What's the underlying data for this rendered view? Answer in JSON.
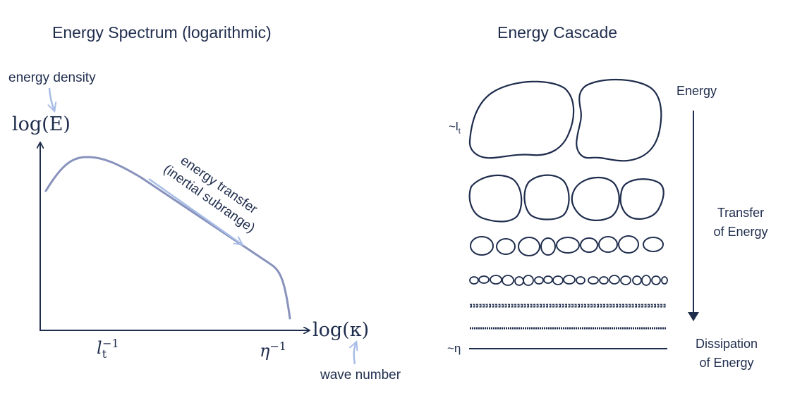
{
  "spectrum": {
    "title": "Energy Spectrum (logarithmic)",
    "energy_density_label": "energy density",
    "y_axis_label": "log(E)",
    "x_axis_label": "log(κ)",
    "wave_number_label": "wave number",
    "transfer_label_line1": "energy transfer",
    "transfer_label_line2": "(inertial subrange)",
    "tick_left": "l",
    "tick_left_sub": "t",
    "tick_left_sup": "−1",
    "tick_right": "η",
    "tick_right_sup": "−1",
    "colors": {
      "curve": "#8892bc",
      "arrow": "#a8bde6",
      "axis": "#1f2d4d"
    }
  },
  "cascade": {
    "title": "Energy Cascade",
    "top_scale_label": "~l",
    "top_scale_sub": "t",
    "bottom_scale_label": "~η",
    "energy_label": "Energy",
    "transfer_line1": "Transfer",
    "transfer_line2": "of Energy",
    "dissipation_line1": "Dissipation",
    "dissipation_line2": "of Energy"
  }
}
